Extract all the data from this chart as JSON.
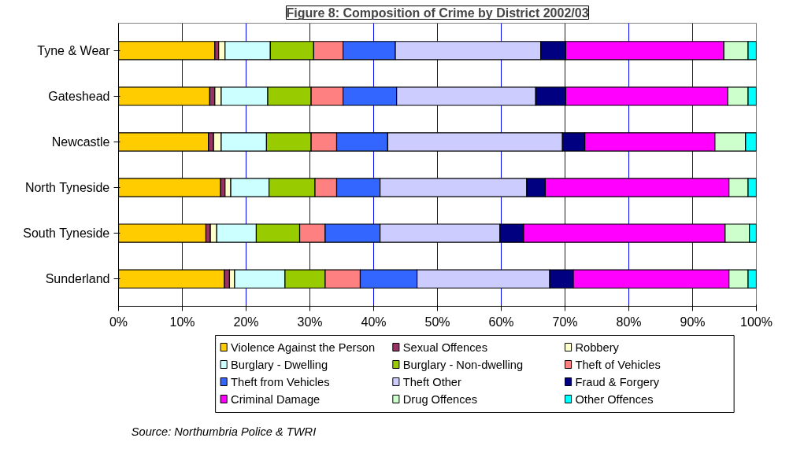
{
  "chart_data": {
    "type": "bar",
    "orientation": "horizontal",
    "stacked": true,
    "title": "Figure 8: Composition of Crime by District 2002/03",
    "categories": [
      "Tyne & Wear",
      "Gateshead",
      "Newcastle",
      "North Tyneside",
      "South Tyneside",
      "Sunderland"
    ],
    "series": [
      {
        "name": "Violence Against the Person",
        "color": "#ffcc00",
        "values": [
          15.1,
          14.3,
          14.1,
          16.0,
          13.7,
          16.6
        ]
      },
      {
        "name": "Sexual Offences",
        "color": "#993366",
        "values": [
          0.6,
          0.8,
          0.8,
          0.7,
          0.7,
          0.8
        ]
      },
      {
        "name": "Robbery",
        "color": "#ffffcc",
        "values": [
          1.0,
          1.0,
          1.2,
          0.9,
          1.0,
          0.8
        ]
      },
      {
        "name": "Burglary - Dwelling",
        "color": "#ccffff",
        "values": [
          7.1,
          7.3,
          7.1,
          6.0,
          6.2,
          7.9
        ]
      },
      {
        "name": "Burglary - Non-dwelling",
        "color": "#99cc00",
        "values": [
          6.8,
          6.8,
          7.0,
          7.2,
          6.8,
          6.3
        ]
      },
      {
        "name": "Theft of Vehicles",
        "color": "#ff8080",
        "values": [
          4.6,
          5.0,
          4.0,
          3.4,
          4.0,
          5.5
        ]
      },
      {
        "name": "Theft from Vehicles",
        "color": "#3366ff",
        "values": [
          8.2,
          8.4,
          8.0,
          6.8,
          8.6,
          8.9
        ]
      },
      {
        "name": "Theft Other",
        "color": "#ccccff",
        "values": [
          22.8,
          21.8,
          27.4,
          23.0,
          18.8,
          20.8
        ]
      },
      {
        "name": "Fraud & Forgery",
        "color": "#000080",
        "values": [
          3.9,
          4.7,
          3.5,
          2.9,
          3.7,
          3.7
        ]
      },
      {
        "name": "Criminal Damage",
        "color": "#ff00ff",
        "values": [
          24.8,
          25.4,
          20.4,
          28.8,
          31.6,
          24.4
        ]
      },
      {
        "name": "Drug Offences",
        "color": "#ccffcc",
        "values": [
          3.8,
          3.2,
          4.8,
          3.0,
          3.8,
          3.0
        ]
      },
      {
        "name": "Other Offences",
        "color": "#00ffff",
        "values": [
          1.3,
          1.3,
          1.7,
          1.3,
          1.1,
          1.3
        ]
      }
    ],
    "xlim": [
      0,
      100
    ],
    "xticks": [
      {
        "value": 0,
        "label": "0%"
      },
      {
        "value": 10,
        "label": "10%"
      },
      {
        "value": 20,
        "label": "20%"
      },
      {
        "value": 30,
        "label": "30%"
      },
      {
        "value": 40,
        "label": "40%"
      },
      {
        "value": 50,
        "label": "50%"
      },
      {
        "value": 60,
        "label": "60%"
      },
      {
        "value": 70,
        "label": "70%"
      },
      {
        "value": 80,
        "label": "80%"
      },
      {
        "value": 90,
        "label": "90%"
      },
      {
        "value": 100,
        "label": "100%"
      }
    ],
    "grid": "x",
    "legend": "bottom",
    "annotations": [
      "Source: Northumbria Police & TWRI"
    ]
  }
}
